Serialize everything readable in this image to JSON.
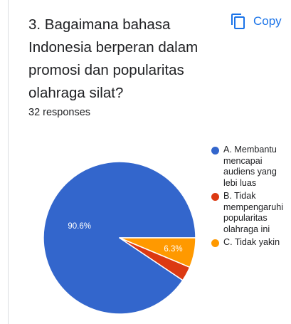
{
  "question": {
    "title": "3. Bagaimana bahasa Indonesia berperan dalam promosi dan popularitas olahraga silat?",
    "responses": "32 responses"
  },
  "copy_button": {
    "label": "Copy",
    "icon": "copy-icon",
    "color": "#1a73e8"
  },
  "chart_data": {
    "type": "pie",
    "title": "",
    "total_responses": 32,
    "slices": [
      {
        "label": "A. Membantu\nmencapai\naudiens yang\nlebi luas",
        "value": 90.6,
        "display": "90.6%",
        "color": "#3366cc"
      },
      {
        "label": "B. Tidak\nmempengaruhi\npopularitas\nolahraga ini",
        "value": 3.1,
        "display": "",
        "color": "#dc3912"
      },
      {
        "label": "C. Tidak yakin",
        "value": 6.3,
        "display": "6.3%",
        "color": "#ff9900"
      }
    ],
    "legend_position": "right",
    "start_angle": "3 o'clock, counter-clockwise"
  }
}
